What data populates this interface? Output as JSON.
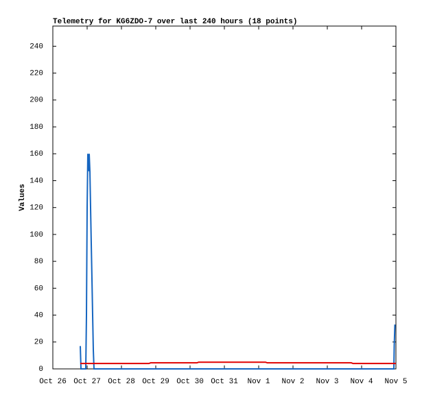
{
  "chart_data": {
    "type": "line",
    "title": "Telemetry for KG6ZDO-7 over last 240 hours (18 points)",
    "y_label": "Values",
    "xlim": [
      0,
      10
    ],
    "ylim": [
      0,
      255
    ],
    "xticks": [
      {
        "value": 0,
        "label": "Oct 26"
      },
      {
        "value": 1,
        "label": "Oct 27"
      },
      {
        "value": 2,
        "label": "Oct 28"
      },
      {
        "value": 3,
        "label": "Oct 29"
      },
      {
        "value": 4,
        "label": "Oct 30"
      },
      {
        "value": 5,
        "label": "Oct 31"
      },
      {
        "value": 6,
        "label": "Nov 1"
      },
      {
        "value": 7,
        "label": "Nov 2"
      },
      {
        "value": 8,
        "label": "Nov 3"
      },
      {
        "value": 9,
        "label": "Nov 4"
      },
      {
        "value": 10,
        "label": "Nov 5"
      }
    ],
    "yticks": [
      0,
      20,
      40,
      60,
      80,
      100,
      120,
      140,
      160,
      180,
      200,
      220,
      240
    ],
    "series": [
      {
        "color": "#1565c0",
        "x": [
          0.8,
          0.82,
          0.96,
          0.98,
          0.99,
          1.0,
          1.02,
          1.04,
          1.06,
          1.08,
          1.12,
          1.14,
          1.16,
          1.18,
          1.2,
          9.94,
          9.95,
          9.97
        ],
        "values": [
          17,
          0,
          0,
          40,
          80,
          120,
          160,
          147,
          160,
          147,
          93,
          67,
          40,
          14,
          0,
          0,
          17,
          33
        ]
      },
      {
        "color": "#e00000",
        "x": [
          0.8,
          2.8,
          2.85,
          4.2,
          4.25,
          6.2,
          6.25,
          8.7,
          8.75,
          10
        ],
        "values": [
          4,
          4,
          4.5,
          4.5,
          5,
          5,
          4.5,
          4.5,
          4,
          4
        ]
      }
    ]
  }
}
